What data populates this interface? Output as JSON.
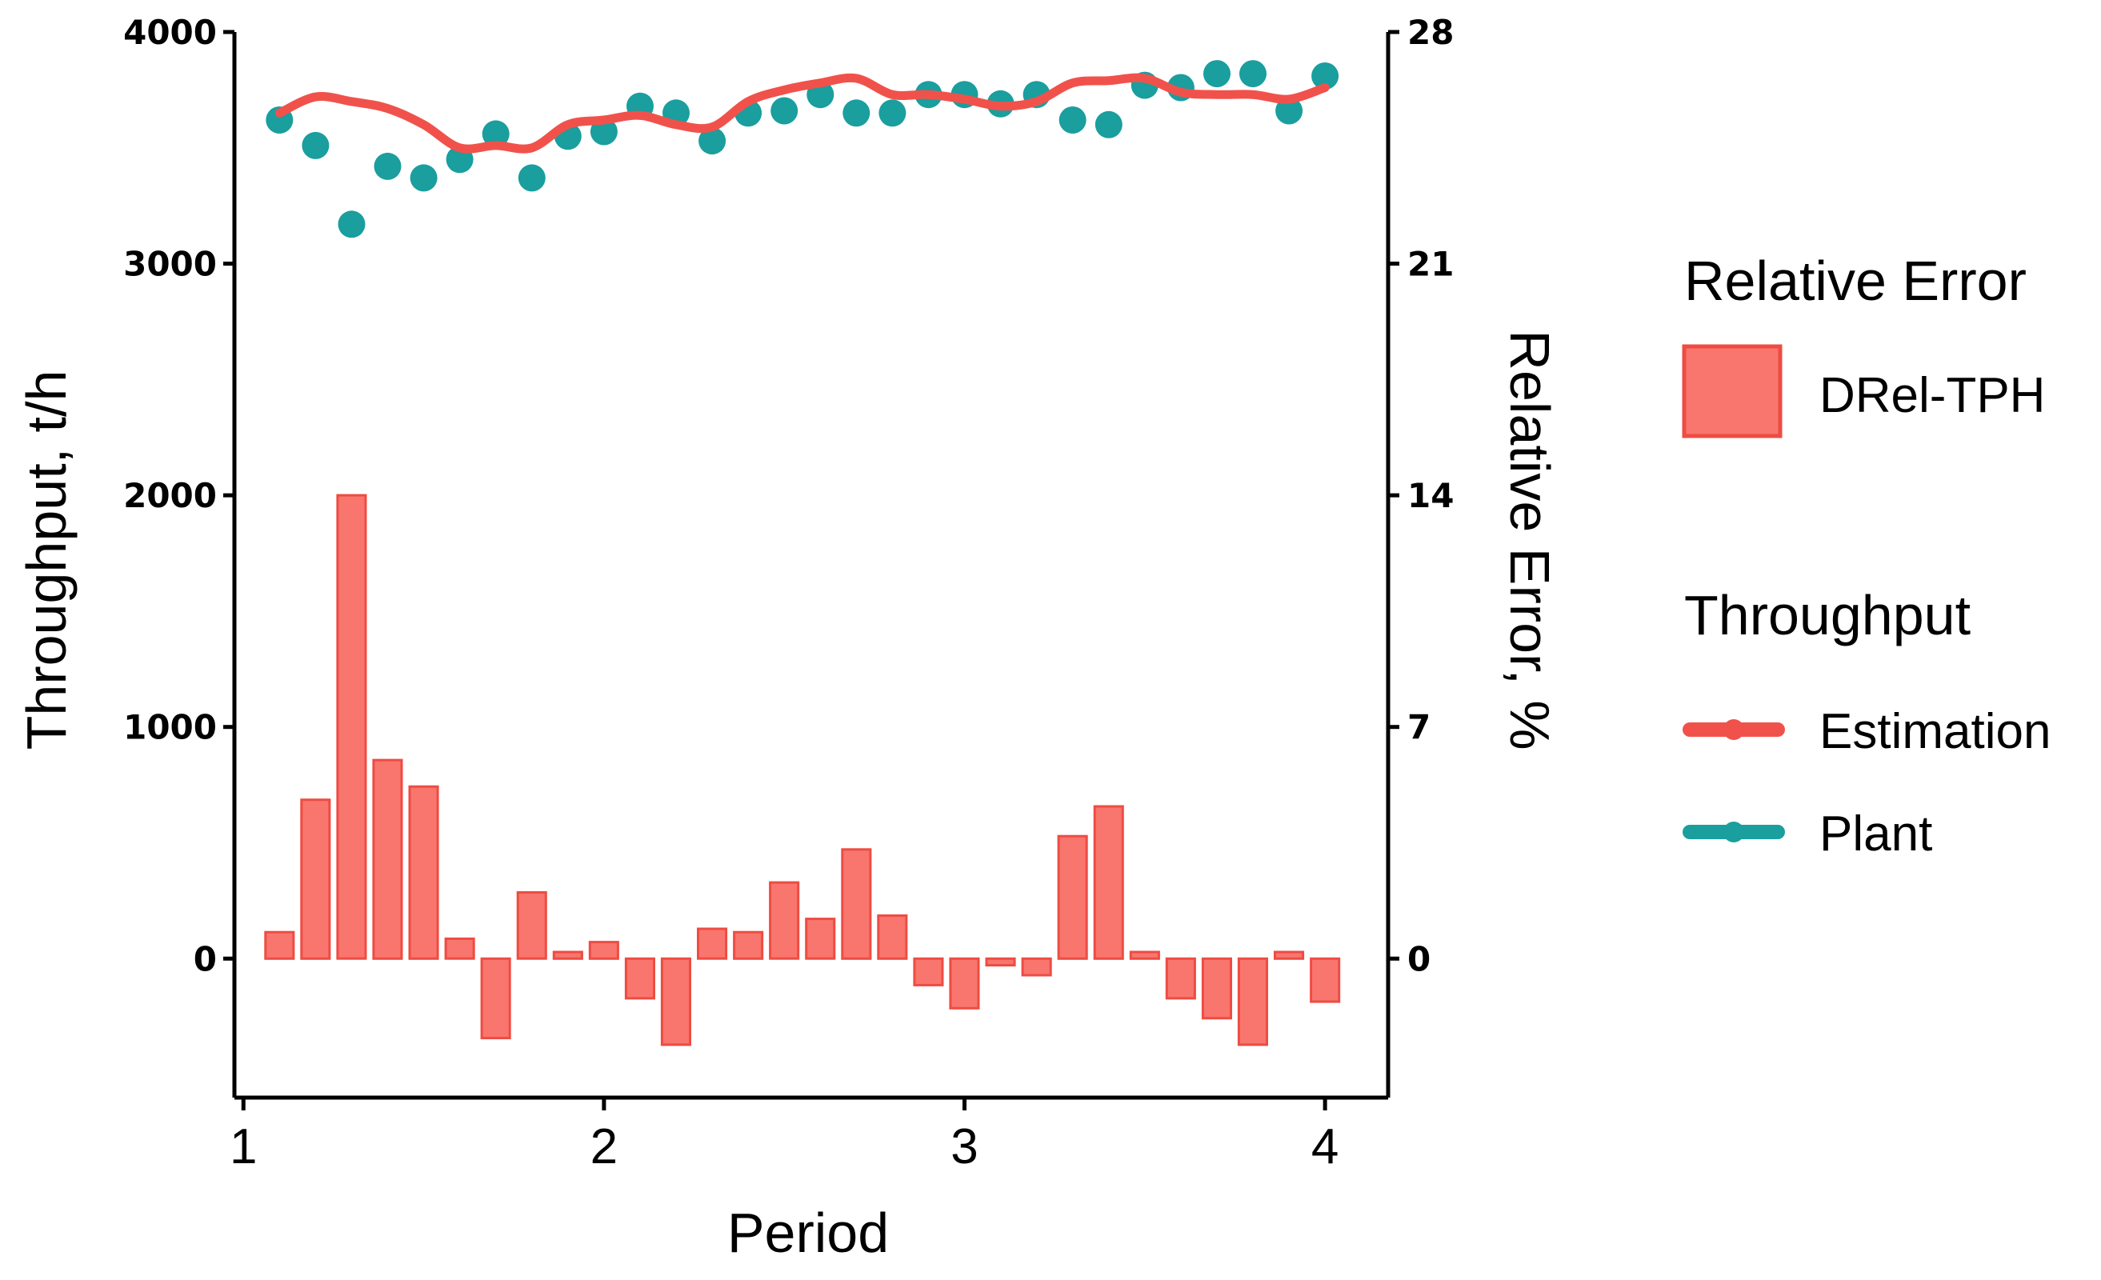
{
  "chart_data": {
    "type": "bar+line+scatter",
    "xlabel": "Period",
    "ylabel_left": "Throughput, t/h",
    "ylabel_right": "Relative Error, %",
    "xlim": [
      0.975,
      4.175
    ],
    "ylim_left": [
      -600,
      4000
    ],
    "ylim_right": [
      -4.2,
      28
    ],
    "x_ticks": [
      1,
      2,
      3,
      4
    ],
    "x_tick_labels": [
      "1",
      "2",
      "3",
      "4"
    ],
    "y_left_ticks": [
      0,
      1000,
      2000,
      3000,
      4000
    ],
    "y_left_tick_labels": [
      "0",
      "1000",
      "2000",
      "3000",
      "4000"
    ],
    "y_right_ticks": [
      0,
      7,
      14,
      21,
      28
    ],
    "y_right_tick_labels": [
      "0",
      "7",
      "14",
      "21",
      "28"
    ],
    "colors": {
      "estimation": "#f0524b",
      "plant": "#1a9e9e",
      "bar_fill": "#f8766d",
      "bar_edge": "#ee4c43"
    },
    "legend": {
      "relative_error_title": "Relative Error",
      "relative_error_label": "DRel-TPH",
      "throughput_title": "Throughput",
      "estimation_label": "Estimation",
      "plant_label": "Plant"
    },
    "x": [
      1.1,
      1.2,
      1.3,
      1.4,
      1.5,
      1.6,
      1.7,
      1.8,
      1.9,
      2.0,
      2.1,
      2.2,
      2.3,
      2.4,
      2.5,
      2.6,
      2.7,
      2.8,
      2.9,
      3.0,
      3.1,
      3.2,
      3.3,
      3.4,
      3.5,
      3.6,
      3.7,
      3.8,
      3.9,
      4.0
    ],
    "series": [
      {
        "name": "Estimation",
        "axis": "left",
        "kind": "line",
        "values": [
          3650,
          3720,
          3700,
          3670,
          3600,
          3500,
          3510,
          3500,
          3600,
          3620,
          3640,
          3600,
          3590,
          3700,
          3750,
          3780,
          3800,
          3730,
          3730,
          3710,
          3680,
          3700,
          3780,
          3790,
          3800,
          3740,
          3730,
          3730,
          3710,
          3760
        ]
      },
      {
        "name": "Plant",
        "axis": "left",
        "kind": "scatter",
        "values": [
          3620,
          3510,
          3170,
          3420,
          3370,
          3450,
          3560,
          3370,
          3550,
          3570,
          3680,
          3650,
          3530,
          3650,
          3660,
          3730,
          3650,
          3650,
          3730,
          3730,
          3690,
          3730,
          3620,
          3600,
          3770,
          3760,
          3820,
          3820,
          3660,
          3810
        ]
      },
      {
        "name": "DRel-TPH",
        "axis": "right",
        "kind": "bar",
        "values": [
          0.8,
          4.8,
          14.0,
          6.0,
          5.2,
          0.6,
          -2.4,
          2.0,
          0.2,
          0.5,
          -1.2,
          -2.6,
          0.9,
          0.8,
          2.3,
          1.2,
          3.3,
          1.3,
          -0.8,
          -1.5,
          -0.2,
          -0.5,
          3.7,
          4.6,
          0.2,
          -1.2,
          -1.8,
          -2.6,
          0.2,
          -1.3
        ]
      }
    ]
  }
}
